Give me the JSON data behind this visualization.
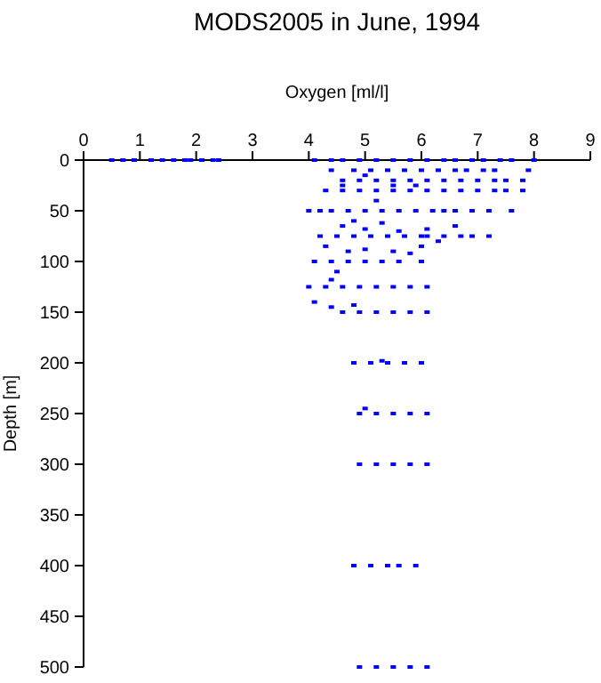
{
  "chart_data": {
    "type": "scatter",
    "title": "MODS2005 in June, 1994",
    "xlabel": "Oxygen [ml/l]",
    "ylabel": "Depth [m]",
    "marker": "square",
    "grid": false,
    "xlim": [
      0,
      9
    ],
    "ylim": [
      500,
      0
    ],
    "xticks": [
      0,
      1,
      2,
      3,
      4,
      5,
      6,
      7,
      8,
      9
    ],
    "yticks": [
      0,
      50,
      100,
      150,
      200,
      250,
      300,
      350,
      400,
      450,
      500
    ],
    "series": [
      {
        "color": "#0000ff",
        "x": [
          0.5,
          0.7,
          0.9,
          1.2,
          1.4,
          1.6,
          1.8,
          1.9,
          2.1,
          2.3,
          2.4,
          4.1,
          4.4,
          4.6,
          4.9,
          5.2,
          5.5,
          5.8,
          6.1,
          6.4,
          6.6,
          6.9,
          7.1,
          7.4,
          7.6,
          8.0,
          4.4,
          4.8,
          5.1,
          5.4,
          5.7,
          6.0,
          6.3,
          6.6,
          6.8,
          7.1,
          7.3,
          7.9,
          4.6,
          4.9,
          5.2,
          5.5,
          5.8,
          6.1,
          6.4,
          6.7,
          7.0,
          7.3,
          7.5,
          7.8,
          4.3,
          4.6,
          4.9,
          5.2,
          5.5,
          5.8,
          6.1,
          6.4,
          6.7,
          7.0,
          7.3,
          7.5,
          7.8,
          4.0,
          4.2,
          4.4,
          4.7,
          5.0,
          5.3,
          5.6,
          5.9,
          6.2,
          6.4,
          6.6,
          6.9,
          7.2,
          7.6,
          4.2,
          4.5,
          4.8,
          5.1,
          5.4,
          5.7,
          6.0,
          6.1,
          6.4,
          6.7,
          6.9,
          7.2,
          4.1,
          4.4,
          4.7,
          5.0,
          5.3,
          5.6,
          6.0,
          4.0,
          4.3,
          4.6,
          4.9,
          5.2,
          5.5,
          5.8,
          6.1,
          4.6,
          4.9,
          5.2,
          5.5,
          5.8,
          6.1,
          4.8,
          5.1,
          5.4,
          5.7,
          6.0,
          4.9,
          5.2,
          5.5,
          5.8,
          6.1,
          4.9,
          5.2,
          5.5,
          5.8,
          6.1,
          4.8,
          5.1,
          5.4,
          5.6,
          5.9,
          4.9,
          5.2,
          5.5,
          5.8,
          6.1,
          5.0,
          4.6,
          5.5,
          5.9,
          4.8,
          5.2,
          4.6,
          5.0,
          5.3,
          5.6,
          6.1,
          6.6,
          4.3,
          4.7,
          5.0,
          5.5,
          5.8,
          6.0,
          6.3,
          4.5,
          4.4,
          4.1,
          4.4,
          4.8,
          5.3,
          5.0
        ],
        "values": [
          0,
          0,
          0,
          0,
          0,
          0,
          0,
          0,
          0,
          0,
          0,
          0,
          0,
          0,
          0,
          0,
          0,
          0,
          0,
          0,
          0,
          0,
          0,
          0,
          0,
          0,
          10,
          10,
          10,
          10,
          10,
          10,
          10,
          10,
          10,
          10,
          10,
          10,
          20,
          20,
          20,
          20,
          20,
          20,
          20,
          20,
          20,
          20,
          20,
          20,
          30,
          30,
          30,
          30,
          30,
          30,
          30,
          30,
          30,
          30,
          30,
          30,
          30,
          50,
          50,
          50,
          50,
          50,
          50,
          50,
          50,
          50,
          50,
          50,
          50,
          50,
          50,
          75,
          75,
          75,
          75,
          75,
          75,
          75,
          75,
          75,
          75,
          75,
          75,
          100,
          100,
          100,
          100,
          100,
          100,
          100,
          125,
          125,
          125,
          125,
          125,
          125,
          125,
          125,
          150,
          150,
          150,
          150,
          150,
          150,
          200,
          200,
          200,
          200,
          200,
          250,
          250,
          250,
          250,
          250,
          300,
          300,
          300,
          300,
          300,
          400,
          400,
          400,
          400,
          400,
          500,
          500,
          500,
          500,
          500,
          15,
          25,
          25,
          25,
          60,
          40,
          65,
          68,
          62,
          70,
          68,
          65,
          85,
          90,
          88,
          90,
          92,
          85,
          80,
          110,
          118,
          140,
          145,
          143,
          198,
          245
        ]
      }
    ]
  }
}
